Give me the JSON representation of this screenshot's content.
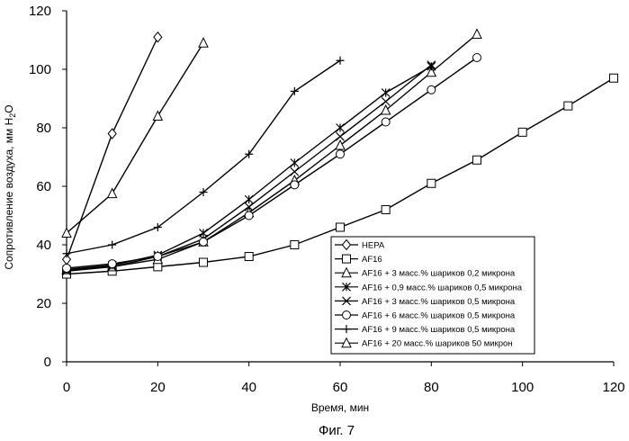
{
  "chart_data": {
    "type": "line",
    "xlabel": "Время, мин",
    "ylabel_main": "Сопротивление воздуха, мм H",
    "ylabel_sub": "2",
    "ylabel_end": "O",
    "xlim": [
      0,
      120
    ],
    "ylim": [
      0,
      120
    ],
    "xticks": [
      "0",
      "20",
      "40",
      "60",
      "80",
      "100",
      "120"
    ],
    "yticks": [
      "0",
      "20",
      "40",
      "60",
      "80",
      "100",
      "120"
    ],
    "grid": false,
    "legend_position": "bottom-right",
    "series": [
      {
        "name": "HEPA",
        "marker": "diamond",
        "x": [
          0,
          10,
          20
        ],
        "y": [
          35,
          78,
          111
        ]
      },
      {
        "name": "AF16",
        "marker": "square",
        "x": [
          0,
          10,
          20,
          30,
          40,
          50,
          60,
          70,
          80,
          90,
          100,
          110,
          120
        ],
        "y": [
          30,
          31,
          32.5,
          34,
          36,
          40,
          46,
          52,
          61,
          69,
          78.5,
          87.5,
          97
        ]
      },
      {
        "name": "AF16 + 3 масс.% шариков 0,2 микрона",
        "marker": "triangle",
        "x": [
          0,
          10,
          20,
          30,
          40,
          50,
          60,
          70,
          80,
          90
        ],
        "y": [
          31.5,
          32.5,
          35,
          41,
          51,
          62,
          74,
          86,
          99,
          112
        ]
      },
      {
        "name": "AF16 + 0,9 масс.% шариков 0,5 микрона",
        "marker": "asterisk",
        "x": [
          0,
          10,
          20,
          30,
          40,
          50,
          60,
          70,
          80
        ],
        "y": [
          31.5,
          33,
          36.5,
          44,
          55.5,
          68,
          80,
          92,
          101
        ]
      },
      {
        "name": "AF16 + 3 масс.% шариков 0,5 микрона",
        "marker": "x",
        "x": [
          0,
          10,
          20,
          30,
          40,
          50,
          60,
          70,
          80
        ],
        "y": [
          31,
          32.5,
          36,
          42,
          53,
          65,
          77,
          89,
          101.5
        ]
      },
      {
        "name": "AF16 + 6 масс.% шариков 0,5 микрона",
        "marker": "circle",
        "x": [
          0,
          10,
          20,
          30,
          40,
          50,
          60,
          70,
          80,
          90
        ],
        "y": [
          32,
          33.5,
          36,
          41,
          50,
          60.5,
          71,
          82,
          93,
          104
        ]
      },
      {
        "name": "AF16 + 9 масс.% шариков 0,5 микрона",
        "marker": "plus",
        "x": [
          0,
          10,
          20,
          30,
          40,
          50,
          60
        ],
        "y": [
          37,
          40,
          46,
          58,
          71,
          92.5,
          103
        ]
      },
      {
        "name": "AF16 + 20 масс.% шариков 50 микрон",
        "marker": "triangle",
        "x": [
          0,
          10,
          20,
          30
        ],
        "y": [
          44,
          57.5,
          84,
          109
        ]
      }
    ]
  },
  "caption": "Фиг. 7"
}
